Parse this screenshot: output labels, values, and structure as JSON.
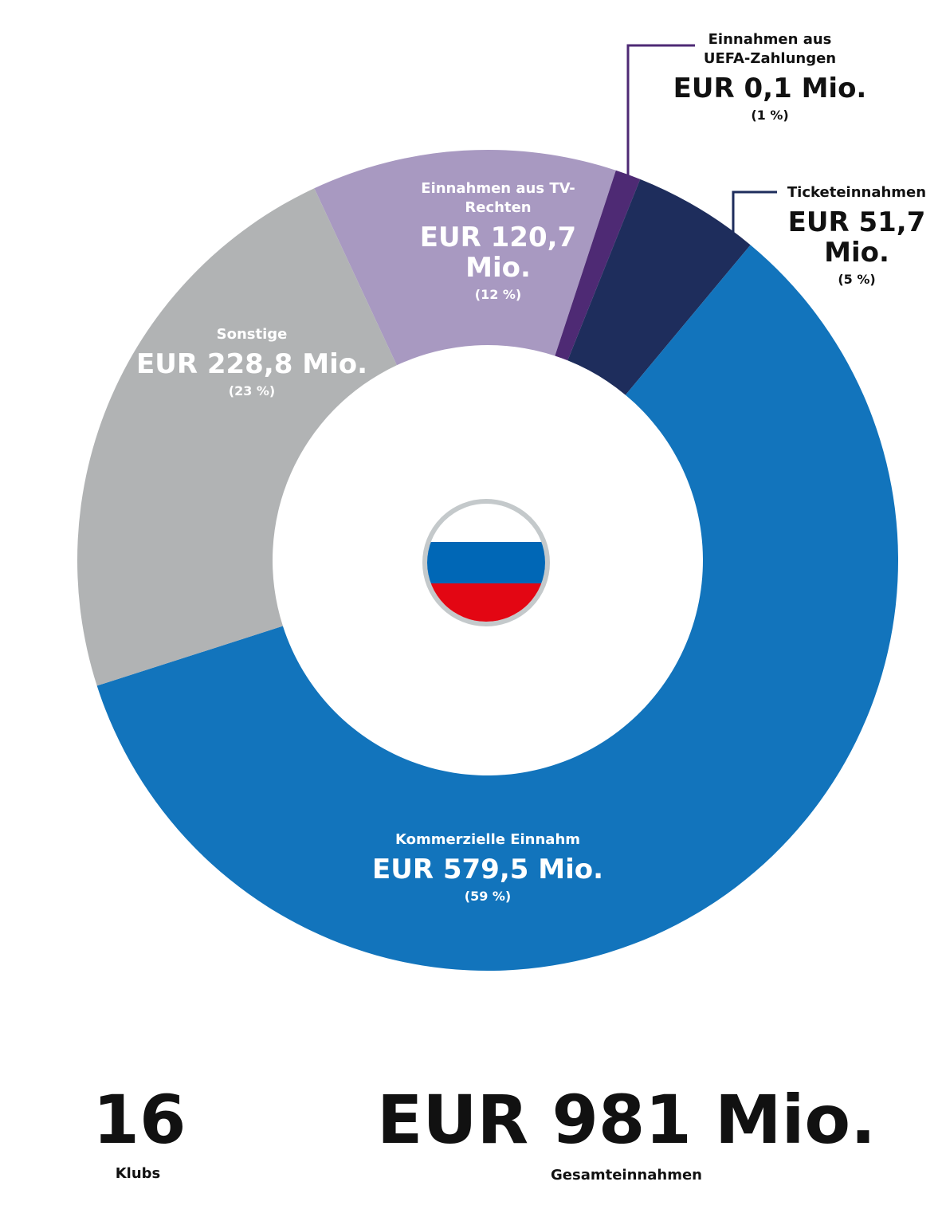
{
  "chart_data": {
    "type": "donut",
    "categories": [
      "Einnahmen aus TV-Rechten",
      "Einnahmen aus UEFA-Zahlungen",
      "Ticketeinnahmen",
      "Kommerzielle Einnahm",
      "Sonstige"
    ],
    "values": [
      12,
      1,
      5,
      59,
      23
    ],
    "value_labels": [
      "(12 %)",
      "(1 %)",
      "(5 %)",
      "(59 %)",
      "(23 %)"
    ],
    "amounts": [
      "EUR 120,7 Mio.",
      "EUR 0,1 Mio.",
      "EUR 51,7 Mio.",
      "EUR 579,5 Mio.",
      "EUR 228,8 Mio."
    ],
    "colors": [
      "#a899c1",
      "#4e2a74",
      "#1e2d5c",
      "#1274bc",
      "#b1b3b4"
    ]
  },
  "footer": {
    "clubs": 16,
    "clubs_label": "Klubs",
    "total": "EUR 981 Mio.",
    "total_label": "Gesamteinnahmen"
  }
}
